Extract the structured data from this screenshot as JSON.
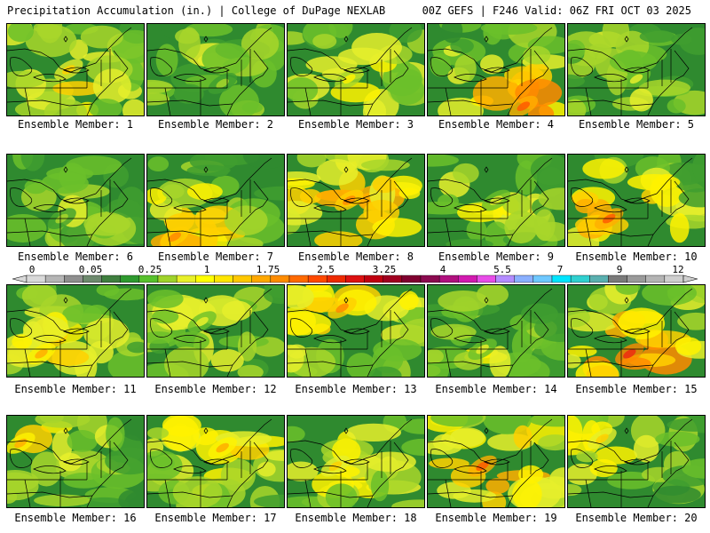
{
  "header": {
    "left": "Precipitation Accumulation (in.) | College of DuPage NEXLAB",
    "right": "00Z GEFS | F246 Valid: 06Z FRI OCT 03 2025"
  },
  "colorbar": {
    "labels": [
      "0",
      "0.05",
      "0.25",
      "1",
      "1.75",
      "2.5",
      "3.25",
      "4",
      "5.5",
      "7",
      "9",
      "12"
    ],
    "colors": [
      "#d9d9d9",
      "#b5b5b5",
      "#8f8f8f",
      "#6e8a6e",
      "#3f7f3f",
      "#2f9a2f",
      "#57c12d",
      "#9fd32b",
      "#e8f02a",
      "#ffff00",
      "#ffe600",
      "#ffc800",
      "#ffa800",
      "#ff8c00",
      "#ff6a00",
      "#ff4a00",
      "#ee2a00",
      "#dd1111",
      "#c00010",
      "#a00020",
      "#800030",
      "#8b0a50",
      "#b0107e",
      "#d21ab0",
      "#e84ce8",
      "#b48cff",
      "#8ab0ff",
      "#6ec8ff",
      "#00e5ff",
      "#30d0d0",
      "#5ab0b0",
      "#7a7a7a",
      "#9a9a9a",
      "#b4b4b4",
      "#cfcfcf"
    ]
  },
  "caption_prefix": "Ensemble Member: ",
  "members": [
    {
      "label": "Ensemble Member: 1",
      "intensity": 0.55,
      "hot": [
        0.45,
        0.5
      ]
    },
    {
      "label": "Ensemble Member: 2",
      "intensity": 0.3,
      "hot": [
        0.55,
        0.65
      ]
    },
    {
      "label": "Ensemble Member: 3",
      "intensity": 0.45,
      "hot": [
        0.45,
        0.6
      ]
    },
    {
      "label": "Ensemble Member: 4",
      "intensity": 0.85,
      "hot": [
        0.7,
        0.9
      ]
    },
    {
      "label": "Ensemble Member: 5",
      "intensity": 0.35,
      "hot": [
        0.5,
        0.6
      ]
    },
    {
      "label": "Ensemble Member: 6",
      "intensity": 0.3,
      "hot": [
        0.4,
        0.7
      ]
    },
    {
      "label": "Ensemble Member: 7",
      "intensity": 0.75,
      "hot": [
        0.2,
        0.9
      ]
    },
    {
      "label": "Ensemble Member: 8",
      "intensity": 0.75,
      "hot": [
        0.45,
        0.5
      ]
    },
    {
      "label": "Ensemble Member: 9",
      "intensity": 0.4,
      "hot": [
        0.5,
        0.5
      ]
    },
    {
      "label": "Ensemble Member: 10",
      "intensity": 0.8,
      "hot": [
        0.3,
        0.7
      ]
    },
    {
      "label": "Ensemble Member: 11",
      "intensity": 0.65,
      "hot": [
        0.25,
        0.75
      ]
    },
    {
      "label": "Ensemble Member: 12",
      "intensity": 0.35,
      "hot": [
        0.4,
        0.4
      ]
    },
    {
      "label": "Ensemble Member: 13",
      "intensity": 0.7,
      "hot": [
        0.4,
        0.25
      ]
    },
    {
      "label": "Ensemble Member: 14",
      "intensity": 0.4,
      "hot": [
        0.4,
        0.7
      ]
    },
    {
      "label": "Ensemble Member: 15",
      "intensity": 0.9,
      "hot": [
        0.45,
        0.75
      ]
    },
    {
      "label": "Ensemble Member: 16",
      "intensity": 0.6,
      "hot": [
        0.1,
        0.3
      ]
    },
    {
      "label": "Ensemble Member: 17",
      "intensity": 0.65,
      "hot": [
        0.55,
        0.35
      ]
    },
    {
      "label": "Ensemble Member: 18",
      "intensity": 0.5,
      "hot": [
        0.35,
        0.55
      ]
    },
    {
      "label": "Ensemble Member: 19",
      "intensity": 0.8,
      "hot": [
        0.4,
        0.55
      ]
    },
    {
      "label": "Ensemble Member: 20",
      "intensity": 0.5,
      "hot": [
        0.25,
        0.25
      ]
    }
  ]
}
